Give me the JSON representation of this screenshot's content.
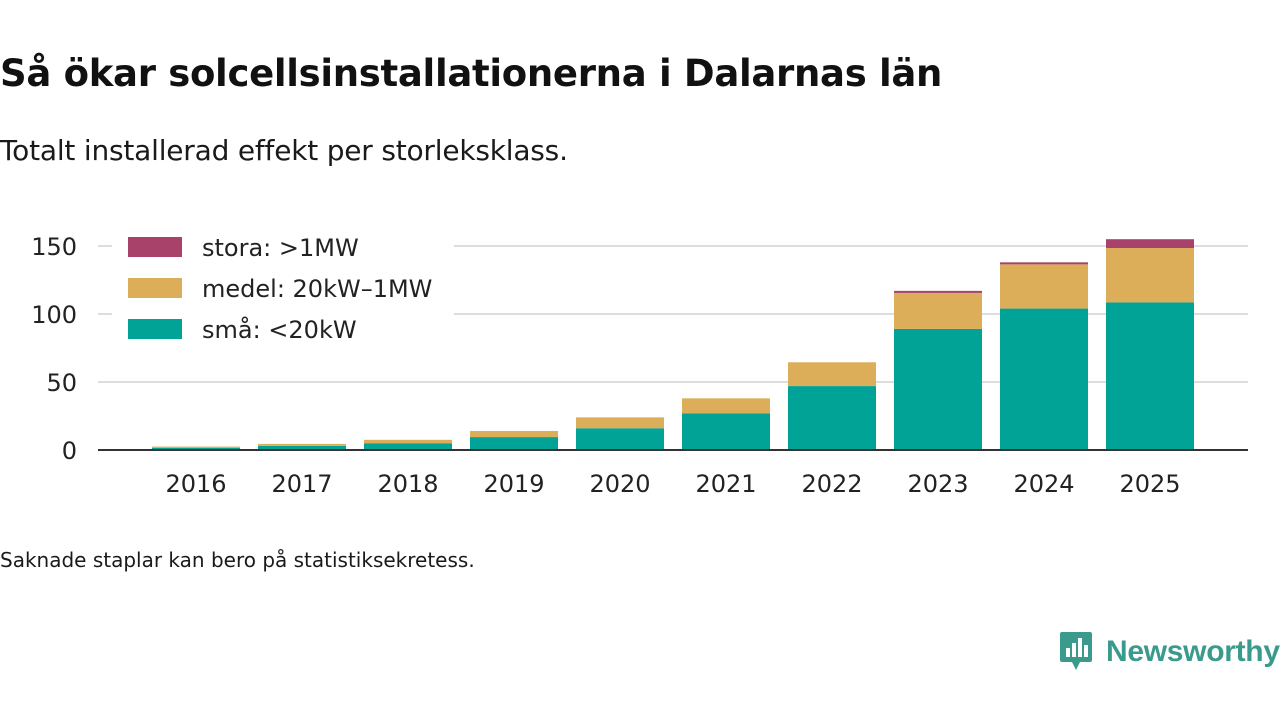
{
  "header": {
    "title": "Så ökar solcellsinstallationerna i Dalarnas län",
    "subtitle": "Totalt installerad effekt per storleksklass."
  },
  "footer": {
    "note": "Saknade staplar kan bero på statistiksekretess.",
    "brand": "Newsworthy",
    "brand_icon": "newsworthy-logo-icon"
  },
  "colors": {
    "stora": "#a8426a",
    "medel": "#dcae5a",
    "sma": "#00a396",
    "grid": "#dddddd",
    "axis": "#333333",
    "brand": "#3a9a8c"
  },
  "chart_data": {
    "type": "bar",
    "stacked": true,
    "title": "Så ökar solcellsinstallationerna i Dalarnas län",
    "subtitle": "Totalt installerad effekt per storleksklass.",
    "xlabel": "",
    "ylabel": "",
    "ylim": [
      0,
      160
    ],
    "yticks": [
      0,
      50,
      100,
      150
    ],
    "grid": true,
    "legend_position": "top-left",
    "categories": [
      "2016",
      "2017",
      "2018",
      "2019",
      "2020",
      "2021",
      "2022",
      "2023",
      "2024",
      "2025"
    ],
    "series": [
      {
        "key": "sma",
        "name": "små: <20kW",
        "values": [
          1.5,
          3,
          5,
          9.5,
          16,
          27,
          47,
          89,
          104,
          108.5
        ]
      },
      {
        "key": "medel",
        "name": "medel: 20kW–1MW",
        "values": [
          1,
          1.5,
          2.5,
          4.5,
          8,
          11,
          17.5,
          26.5,
          32.5,
          40
        ]
      },
      {
        "key": "stora",
        "name": "stora: >1MW",
        "values": [
          0,
          0,
          0,
          0,
          0,
          0,
          0,
          1.5,
          1.5,
          6.5
        ]
      }
    ],
    "legend_order": [
      "stora",
      "medel",
      "sma"
    ]
  }
}
